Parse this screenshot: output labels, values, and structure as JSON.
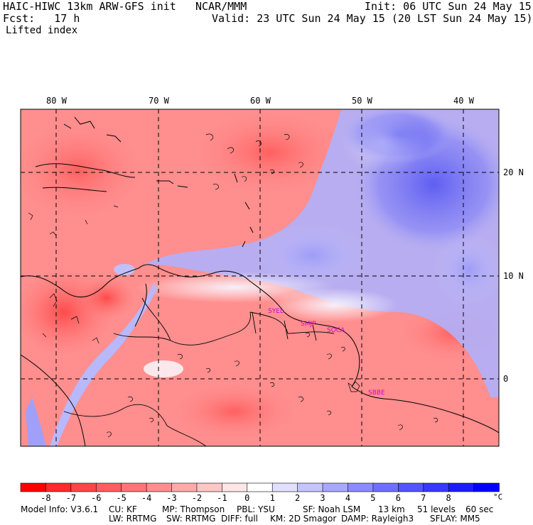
{
  "header": {
    "model_title": "HAIC-HIWC 13km ARW-GFS init",
    "org": "NCAR/MMM",
    "init_time": "Init: 06 UTC Sun 24 May 15",
    "forecast_hour": "Fcst:   17 h",
    "valid_time": "Valid: 23 UTC Sun 24 May 15 (20 LST Sun 24 May 15)",
    "field_name": "Lifted index"
  },
  "axes": {
    "longitudes": [
      "80 W",
      "70 W",
      "60 W",
      "50 W",
      "40 W"
    ],
    "latitudes": [
      "20 N",
      "10 N",
      "0"
    ]
  },
  "stations": [
    "SYEL",
    "SMJP",
    "SOCA",
    "SBBE"
  ],
  "colorbar": {
    "labels": [
      "-8",
      "-7",
      "-6",
      "-5",
      "-4",
      "-3",
      "-2",
      "-1",
      "0",
      "1",
      "2",
      "3",
      "4",
      "5",
      "6",
      "7",
      "8"
    ],
    "unit": "°C",
    "colors": [
      "#ff0000",
      "#ff2a2a",
      "#ff4646",
      "#ff5e5e",
      "#ff7575",
      "#ff8f8f",
      "#ffaaaa",
      "#ffc6c6",
      "#ffe6e6",
      "#ffffff",
      "#e1e1ff",
      "#c4c4ff",
      "#a8a8ff",
      "#8c8cff",
      "#7070ff",
      "#5454ff",
      "#3838ff",
      "#1c1cff",
      "#0000ff"
    ]
  },
  "footer": {
    "line1": [
      "Model Info: V3.6.1",
      "CU: KF",
      "MP: Thompson",
      "PBL: YSU",
      "SF: Noah LSM",
      "13 km",
      "51 levels",
      "60 sec"
    ],
    "line2": [
      "LW: RRTMG",
      "SW: RRTMG",
      "DIFF: full",
      "KM: 2D Smagor",
      "DAMP: Rayleigh3",
      "SFLAY: MM5"
    ]
  }
}
